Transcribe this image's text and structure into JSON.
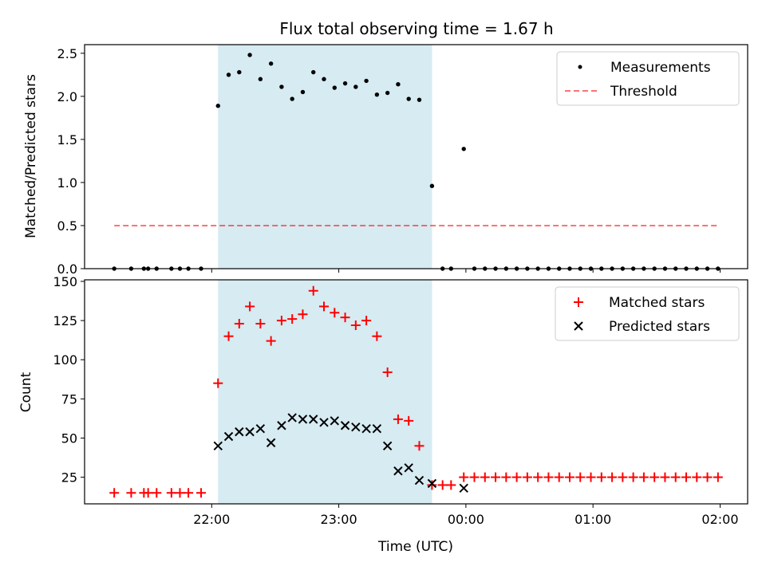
{
  "figure_title": "Flux total observing time = 1.67 h",
  "colors": {
    "shade": "#add8e6",
    "threshold": "#ff0000",
    "matched": "#ff0000",
    "predicted": "#000000",
    "measurement": "#000000"
  },
  "chart_data": [
    {
      "type": "scatter",
      "title": "",
      "xlabel": "",
      "ylabel": "Matched/Predicted stars",
      "xlim": [
        "21:00",
        "02:13"
      ],
      "ylim": [
        0,
        2.6
      ],
      "yticks": [
        "0.0",
        "0.5",
        "1.0",
        "1.5",
        "2.0",
        "2.5"
      ],
      "legend_position": "top-right",
      "shaded_span": [
        "22:03",
        "23:44"
      ],
      "series": [
        {
          "name": "Measurements",
          "marker": "dot",
          "x": [
            "21:14",
            "21:22",
            "21:28",
            "21:30",
            "21:34",
            "21:41",
            "21:45",
            "21:49",
            "21:55",
            "22:03",
            "22:08",
            "22:13",
            "22:18",
            "22:23",
            "22:28",
            "22:33",
            "22:38",
            "22:43",
            "22:48",
            "22:53",
            "22:58",
            "23:03",
            "23:08",
            "23:13",
            "23:18",
            "23:23",
            "23:28",
            "23:33",
            "23:38",
            "23:44",
            "23:49",
            "23:53",
            "23:59",
            "00:04",
            "00:09",
            "00:14",
            "00:19",
            "00:24",
            "00:29",
            "00:34",
            "00:39",
            "00:44",
            "00:49",
            "00:54",
            "00:59",
            "01:04",
            "01:09",
            "01:14",
            "01:19",
            "01:24",
            "01:29",
            "01:34",
            "01:39",
            "01:44",
            "01:49",
            "01:54",
            "01:59"
          ],
          "y": [
            0,
            0,
            0,
            0,
            0,
            0,
            0,
            0,
            0,
            1.89,
            2.25,
            2.28,
            2.48,
            2.2,
            2.38,
            2.11,
            1.97,
            2.05,
            2.28,
            2.2,
            2.1,
            2.15,
            2.11,
            2.18,
            2.02,
            2.04,
            2.14,
            1.97,
            1.96,
            0.96,
            0,
            0,
            1.39,
            0,
            0,
            0,
            0,
            0,
            0,
            0,
            0,
            0,
            0,
            0,
            0,
            0,
            0,
            0,
            0,
            0,
            0,
            0,
            0,
            0,
            0,
            0,
            0
          ]
        },
        {
          "name": "Threshold",
          "style": "dashed",
          "x": [
            "21:14",
            "01:59"
          ],
          "y": [
            0.5,
            0.5
          ]
        }
      ]
    },
    {
      "type": "scatter",
      "title": "",
      "xlabel": "Time (UTC)",
      "ylabel": "Count",
      "xlim": [
        "21:00",
        "02:13"
      ],
      "ylim": [
        8,
        151
      ],
      "xticks": [
        "22:00",
        "23:00",
        "00:00",
        "01:00",
        "02:00"
      ],
      "yticks": [
        "25",
        "50",
        "75",
        "100",
        "125",
        "150"
      ],
      "legend_position": "top-right",
      "shaded_span": [
        "22:03",
        "23:44"
      ],
      "series": [
        {
          "name": "Matched stars",
          "marker": "plus",
          "x": [
            "21:14",
            "21:22",
            "21:28",
            "21:30",
            "21:34",
            "21:41",
            "21:45",
            "21:49",
            "21:55",
            "22:03",
            "22:08",
            "22:13",
            "22:18",
            "22:23",
            "22:28",
            "22:33",
            "22:38",
            "22:43",
            "22:48",
            "22:53",
            "22:58",
            "23:03",
            "23:08",
            "23:13",
            "23:18",
            "23:23",
            "23:28",
            "23:33",
            "23:38",
            "23:44",
            "23:49",
            "23:53",
            "23:59",
            "00:04",
            "00:09",
            "00:14",
            "00:19",
            "00:24",
            "00:29",
            "00:34",
            "00:39",
            "00:44",
            "00:49",
            "00:54",
            "00:59",
            "01:04",
            "01:09",
            "01:14",
            "01:19",
            "01:24",
            "01:29",
            "01:34",
            "01:39",
            "01:44",
            "01:49",
            "01:54",
            "01:59"
          ],
          "y": [
            15,
            15,
            15,
            15,
            15,
            15,
            15,
            15,
            15,
            85,
            115,
            123,
            134,
            123,
            112,
            125,
            126,
            129,
            144,
            134,
            130,
            127,
            122,
            125,
            115,
            92,
            62,
            61,
            45,
            20,
            20,
            20,
            25,
            25,
            25,
            25,
            25,
            25,
            25,
            25,
            25,
            25,
            25,
            25,
            25,
            25,
            25,
            25,
            25,
            25,
            25,
            25,
            25,
            25,
            25,
            25,
            25
          ]
        },
        {
          "name": "Predicted stars",
          "marker": "x",
          "x": [
            "22:03",
            "22:08",
            "22:13",
            "22:18",
            "22:23",
            "22:28",
            "22:33",
            "22:38",
            "22:43",
            "22:48",
            "22:53",
            "22:58",
            "23:03",
            "23:08",
            "23:13",
            "23:18",
            "23:23",
            "23:28",
            "23:33",
            "23:38",
            "23:44",
            "23:59"
          ],
          "y": [
            45,
            51,
            54,
            54,
            56,
            47,
            58,
            63,
            62,
            62,
            60,
            61,
            58,
            57,
            56,
            56,
            45,
            29,
            31,
            23,
            21,
            18
          ]
        }
      ]
    }
  ]
}
